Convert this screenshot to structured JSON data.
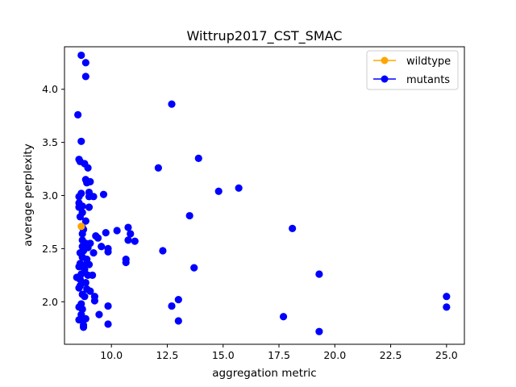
{
  "chart_data": {
    "type": "scatter",
    "title": "Wittrup2017_CST_SMAC",
    "xlabel": "aggregation metric",
    "ylabel": "average perplexity",
    "xlim": [
      7.9,
      25.8
    ],
    "ylim": [
      1.6,
      4.4
    ],
    "xticks": [
      10.0,
      12.5,
      15.0,
      17.5,
      20.0,
      22.5,
      25.0
    ],
    "xtick_labels": [
      "10.0",
      "12.5",
      "15.0",
      "17.5",
      "20.0",
      "22.5",
      "25.0"
    ],
    "yticks": [
      2.0,
      2.5,
      3.0,
      3.5,
      4.0
    ],
    "ytick_labels": [
      "2.0",
      "2.5",
      "3.0",
      "3.5",
      "4.0"
    ],
    "grid": false,
    "legend_position": "top-right",
    "colors": {
      "wildtype": "#ffa500",
      "mutants": "#0000ff"
    },
    "series": [
      {
        "name": "wildtype",
        "color": "#ffa500",
        "points": [
          [
            8.65,
            2.71
          ]
        ]
      },
      {
        "name": "mutants",
        "color": "#0000ff",
        "points": [
          [
            8.65,
            4.32
          ],
          [
            8.85,
            4.25
          ],
          [
            8.85,
            4.12
          ],
          [
            8.5,
            3.76
          ],
          [
            8.65,
            3.51
          ],
          [
            8.55,
            3.34
          ],
          [
            8.6,
            3.32
          ],
          [
            8.8,
            3.3
          ],
          [
            8.95,
            3.26
          ],
          [
            8.85,
            3.15
          ],
          [
            9.05,
            3.13
          ],
          [
            8.9,
            3.12
          ],
          [
            8.65,
            3.02
          ],
          [
            8.55,
            2.99
          ],
          [
            9.0,
            3.03
          ],
          [
            9.0,
            2.99
          ],
          [
            9.2,
            2.99
          ],
          [
            9.65,
            3.01
          ],
          [
            8.55,
            2.93
          ],
          [
            8.55,
            2.89
          ],
          [
            8.7,
            2.9
          ],
          [
            8.7,
            2.84
          ],
          [
            9.0,
            2.89
          ],
          [
            8.6,
            2.8
          ],
          [
            8.85,
            2.76
          ],
          [
            8.7,
            2.7
          ],
          [
            8.75,
            2.68
          ],
          [
            8.7,
            2.64
          ],
          [
            8.7,
            2.58
          ],
          [
            8.7,
            2.52
          ],
          [
            8.75,
            2.48
          ],
          [
            8.85,
            2.55
          ],
          [
            8.95,
            2.51
          ],
          [
            9.05,
            2.55
          ],
          [
            8.6,
            2.46
          ],
          [
            8.7,
            2.42
          ],
          [
            8.9,
            2.4
          ],
          [
            8.6,
            2.36
          ],
          [
            8.55,
            2.33
          ],
          [
            8.85,
            2.35
          ],
          [
            9.0,
            2.35
          ],
          [
            8.8,
            2.3
          ],
          [
            8.65,
            2.26
          ],
          [
            8.45,
            2.23
          ],
          [
            8.95,
            2.25
          ],
          [
            9.15,
            2.25
          ],
          [
            8.6,
            2.21
          ],
          [
            8.85,
            2.18
          ],
          [
            8.6,
            2.15
          ],
          [
            8.55,
            2.13
          ],
          [
            8.9,
            2.12
          ],
          [
            9.05,
            2.1
          ],
          [
            8.7,
            2.07
          ],
          [
            8.8,
            2.05
          ],
          [
            9.25,
            2.05
          ],
          [
            9.25,
            2.01
          ],
          [
            8.65,
            1.98
          ],
          [
            8.55,
            1.95
          ],
          [
            8.7,
            1.93
          ],
          [
            8.65,
            1.88
          ],
          [
            8.65,
            1.84
          ],
          [
            8.55,
            1.83
          ],
          [
            8.85,
            1.84
          ],
          [
            8.75,
            1.78
          ],
          [
            8.75,
            1.76
          ],
          [
            9.2,
            2.46
          ],
          [
            9.3,
            2.62
          ],
          [
            9.4,
            2.6
          ],
          [
            9.55,
            2.52
          ],
          [
            9.75,
            2.65
          ],
          [
            9.85,
            2.5
          ],
          [
            9.85,
            2.47
          ],
          [
            10.25,
            2.67
          ],
          [
            10.75,
            2.7
          ],
          [
            10.85,
            2.64
          ],
          [
            10.75,
            2.58
          ],
          [
            11.05,
            2.57
          ],
          [
            10.65,
            2.4
          ],
          [
            10.65,
            2.37
          ],
          [
            12.3,
            2.48
          ],
          [
            9.45,
            1.88
          ],
          [
            9.85,
            1.96
          ],
          [
            9.85,
            1.79
          ],
          [
            12.1,
            3.26
          ],
          [
            12.7,
            3.86
          ],
          [
            13.9,
            3.35
          ],
          [
            13.5,
            2.81
          ],
          [
            13.7,
            2.32
          ],
          [
            12.7,
            1.96
          ],
          [
            13.0,
            2.02
          ],
          [
            13.0,
            1.82
          ],
          [
            14.8,
            3.04
          ],
          [
            15.7,
            3.07
          ],
          [
            18.1,
            2.69
          ],
          [
            17.7,
            1.86
          ],
          [
            19.3,
            2.26
          ],
          [
            19.3,
            1.72
          ],
          [
            25.0,
            2.05
          ],
          [
            25.0,
            1.95
          ]
        ]
      }
    ]
  }
}
